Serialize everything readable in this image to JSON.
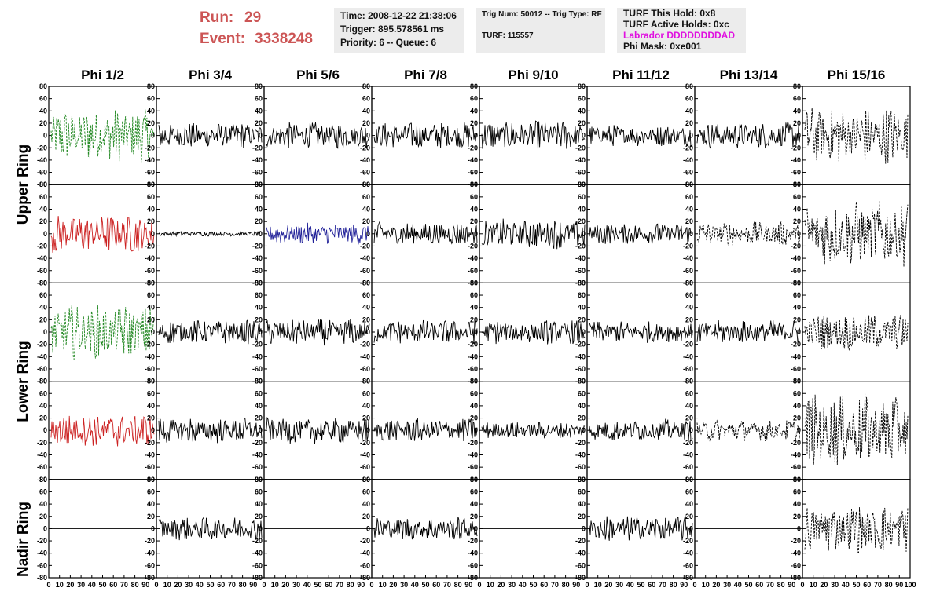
{
  "run_panel": {
    "run_label": "Run:",
    "run_value": "29",
    "event_label": "Event:",
    "event_value": "3338248"
  },
  "time_panel": {
    "time": "Time: 2008-12-22 21:38:06",
    "trigger": "Trigger: 895.578561 ms",
    "priority": "Priority: 6 -- Queue: 6"
  },
  "trig_panel": {
    "trig": "Trig Num: 50012 -- Trig Type: RF",
    "turf": "TURF: 115557"
  },
  "turf_panel": {
    "hold": "TURF This Hold: 0x8",
    "active": "TURF Active Holds: 0xc",
    "labrador": "Labrador DDDDDDDDAD",
    "phi_mask": "Phi Mask: 0xe001"
  },
  "columns": [
    "Phi 1/2",
    "Phi 3/4",
    "Phi 5/6",
    "Phi 7/8",
    "Phi 9/10",
    "Phi 11/12",
    "Phi 13/14",
    "Phi 15/16"
  ],
  "row_labels": [
    "Upper Ring",
    "Lower Ring",
    "Nadir Ring"
  ],
  "colors": {
    "run_text": "#cc5555",
    "labrador_text": "#e010e0",
    "trace_black": "#000000",
    "trace_green": "#228822",
    "trace_red": "#cc2222",
    "trace_blue": "#222299",
    "info_bg": "#ececec"
  },
  "chart_data": {
    "type": "line",
    "grid": "8 columns x 5 rows of waveform panels",
    "ylim": [
      -80,
      80
    ],
    "xlim": [
      0,
      100
    ],
    "y_ticks": [
      80,
      60,
      40,
      20,
      0,
      -20,
      -40,
      -60,
      -80
    ],
    "x_ticks": [
      0,
      10,
      20,
      30,
      40,
      50,
      60,
      70,
      80,
      90,
      100
    ],
    "panels": [
      [
        {
          "color": "trace_green",
          "style": "dashed",
          "amplitude": 45
        },
        {
          "color": "trace_black",
          "style": "solid",
          "amplitude": 22
        },
        {
          "color": "trace_black",
          "style": "solid",
          "amplitude": 22
        },
        {
          "color": "trace_black",
          "style": "solid",
          "amplitude": 22
        },
        {
          "color": "trace_black",
          "style": "solid",
          "amplitude": 25
        },
        {
          "color": "trace_black",
          "style": "solid",
          "amplitude": 18
        },
        {
          "color": "trace_black",
          "style": "solid",
          "amplitude": 22
        },
        {
          "color": "trace_black",
          "style": "dashed",
          "amplitude": 48
        }
      ],
      [
        {
          "color": "trace_red",
          "style": "solid",
          "amplitude": 32
        },
        {
          "color": "trace_black",
          "style": "solid",
          "amplitude": 4
        },
        {
          "color": "trace_blue",
          "style": "solid",
          "amplitude": 18
        },
        {
          "color": "trace_black",
          "style": "solid",
          "amplitude": 20
        },
        {
          "color": "trace_black",
          "style": "solid",
          "amplitude": 25
        },
        {
          "color": "trace_black",
          "style": "solid",
          "amplitude": 18
        },
        {
          "color": "trace_black",
          "style": "dashed",
          "amplitude": 20
        },
        {
          "color": "trace_black",
          "style": "dashed",
          "amplitude": 55
        }
      ],
      [
        {
          "color": "trace_green",
          "style": "dashed",
          "amplitude": 45
        },
        {
          "color": "trace_black",
          "style": "solid",
          "amplitude": 20
        },
        {
          "color": "trace_black",
          "style": "solid",
          "amplitude": 22
        },
        {
          "color": "trace_black",
          "style": "solid",
          "amplitude": 20
        },
        {
          "color": "trace_black",
          "style": "solid",
          "amplitude": 20
        },
        {
          "color": "trace_black",
          "style": "solid",
          "amplitude": 18
        },
        {
          "color": "trace_black",
          "style": "solid",
          "amplitude": 20
        },
        {
          "color": "trace_black",
          "style": "dashed",
          "amplitude": 30
        }
      ],
      [
        {
          "color": "trace_red",
          "style": "solid",
          "amplitude": 28
        },
        {
          "color": "trace_black",
          "style": "solid",
          "amplitude": 22
        },
        {
          "color": "trace_black",
          "style": "solid",
          "amplitude": 22
        },
        {
          "color": "trace_black",
          "style": "solid",
          "amplitude": 20
        },
        {
          "color": "trace_black",
          "style": "solid",
          "amplitude": 14
        },
        {
          "color": "trace_black",
          "style": "solid",
          "amplitude": 18
        },
        {
          "color": "trace_black",
          "style": "dashed",
          "amplitude": 18
        },
        {
          "color": "trace_black",
          "style": "dashed",
          "amplitude": 60
        }
      ],
      [
        {
          "color": "trace_black",
          "style": "solid",
          "amplitude": 0
        },
        {
          "color": "trace_black",
          "style": "solid",
          "amplitude": 20
        },
        {
          "color": "trace_black",
          "style": "solid",
          "amplitude": 0
        },
        {
          "color": "trace_black",
          "style": "solid",
          "amplitude": 20
        },
        {
          "color": "trace_black",
          "style": "solid",
          "amplitude": 0
        },
        {
          "color": "trace_black",
          "style": "solid",
          "amplitude": 22
        },
        {
          "color": "trace_black",
          "style": "solid",
          "amplitude": 0
        },
        {
          "color": "trace_black",
          "style": "dashed",
          "amplitude": 40
        }
      ]
    ]
  }
}
